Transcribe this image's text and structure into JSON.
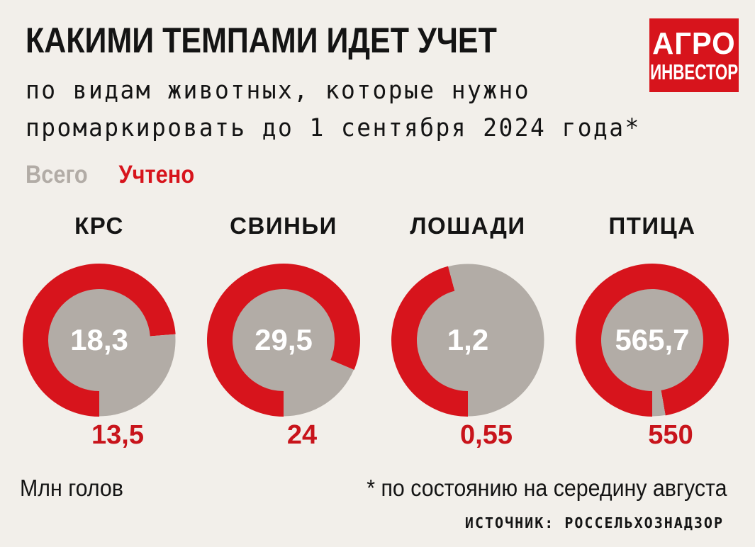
{
  "title": "КАКИМИ ТЕМПАМИ ИДЕТ УЧЕТ",
  "subtitle": "по видам животных, которые нужно промаркировать до 1 сентября 2024 года*",
  "logo": {
    "line1": "АГРО",
    "line2": "ИНВЕСТОР"
  },
  "legend": {
    "total": "Всего",
    "counted": "Учтено"
  },
  "colors": {
    "total": "#b2aca6",
    "counted": "#d7141c",
    "accent_text": "#c8141b",
    "logo_bg": "#d7141c"
  },
  "chart_data": {
    "type": "pie",
    "unit": "Млн голов",
    "categories": [
      "КРС",
      "СВИНЬИ",
      "ЛОШАДИ",
      "ПТИЦА"
    ],
    "series": [
      {
        "name": "Всего",
        "values": [
          18.3,
          29.5,
          1.2,
          565.7
        ],
        "labels": [
          "18,3",
          "29,5",
          "1,2",
          "565,7"
        ]
      },
      {
        "name": "Учтено",
        "values": [
          13.5,
          24,
          0.55,
          550
        ],
        "labels": [
          "13,5",
          "24",
          "0,55",
          "550"
        ]
      }
    ]
  },
  "footer": {
    "unit": "Млн голов",
    "note": "* по состоянию на середину августа",
    "source": "ИСТОЧНИК: РОССЕЛЬХОЗНАДЗОР"
  }
}
